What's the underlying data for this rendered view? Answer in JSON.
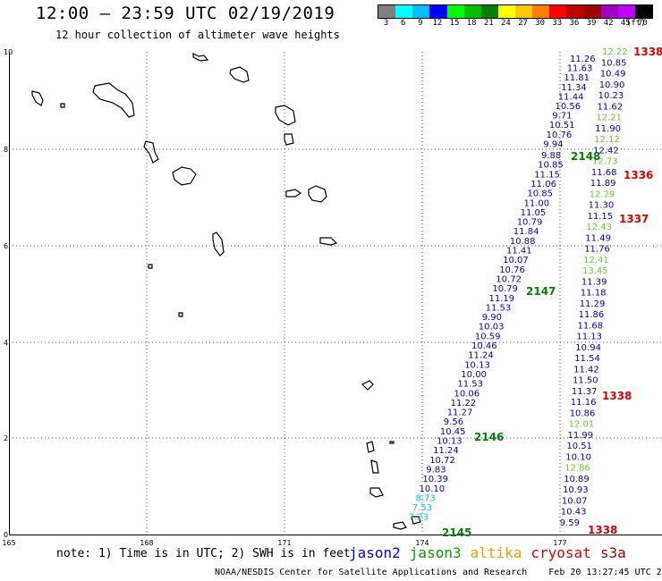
{
  "header": {
    "title": "12:00 – 23:59 UTC 02/19/2019",
    "subtitle": "12 hour collection of altimeter wave heights"
  },
  "legend": {
    "unit_label": "(ft)",
    "colors": [
      "#808080",
      "#00ffff",
      "#00bfff",
      "#0000ff",
      "#00ff00",
      "#00c000",
      "#008000",
      "#ffff00",
      "#ffc800",
      "#ff8000",
      "#ff0000",
      "#c00000",
      "#a00000",
      "#a000c0",
      "#c000ff",
      "#000000"
    ],
    "labels": [
      "3",
      "6",
      "9",
      "12",
      "15",
      "18",
      "21",
      "24",
      "27",
      "30",
      "33",
      "36",
      "39",
      "42",
      "45",
      "70"
    ]
  },
  "axes": {
    "x_ticks": [
      "165",
      "168",
      "171",
      "174",
      "177"
    ],
    "y_ticks": [
      "0",
      "2",
      "4",
      "6",
      "8",
      "10"
    ]
  },
  "track_labels": [
    {
      "text": "1338",
      "color": "#e00000"
    },
    {
      "text": "1336",
      "color": "#e00000"
    },
    {
      "text": "1337",
      "color": "#e00000"
    },
    {
      "text": "1338",
      "color": "#e00000"
    },
    {
      "text": "1338",
      "color": "#e00000"
    },
    {
      "text": "2148",
      "color": "#008000"
    },
    {
      "text": "2147",
      "color": "#008000"
    },
    {
      "text": "2146",
      "color": "#008000"
    },
    {
      "text": "2145",
      "color": "#008000"
    }
  ],
  "track_left": [
    "9.88",
    "10.85",
    "11.15",
    "11.06",
    "10.85",
    "11.00",
    "11.05",
    "10.79",
    "11.84",
    "10.88",
    "11.41",
    "10.07",
    "10.76",
    "10.72",
    "10.79",
    "11.19",
    "11.53",
    "9.90",
    "10.03",
    "10.59",
    "10.46",
    "11.24",
    "10.13",
    "10.00",
    "11.53",
    "10.06",
    "11.22",
    "11.27",
    "9.56",
    "10.45",
    "10.13",
    "11.24",
    "10.72",
    "9.83",
    "10.39",
    "10.10",
    "8.73",
    "7.53",
    "7.23"
  ],
  "track_left_colors": [
    "#0000cc",
    "#0000cc",
    "#0000cc",
    "#0000cc",
    "#0000cc",
    "#0000cc",
    "#0000cc",
    "#0000cc",
    "#0000cc",
    "#0000cc",
    "#0000cc",
    "#0000cc",
    "#0000cc",
    "#0000cc",
    "#0000cc",
    "#0000cc",
    "#0000cc",
    "#0000cc",
    "#0000cc",
    "#0000cc",
    "#0000cc",
    "#0000cc",
    "#0000cc",
    "#0000cc",
    "#0000cc",
    "#0000cc",
    "#0000cc",
    "#0000cc",
    "#0000cc",
    "#0000cc",
    "#0000cc",
    "#0000cc",
    "#0000cc",
    "#0000cc",
    "#0000cc",
    "#0000cc",
    "#00bfff",
    "#00bfff",
    "#00bfff"
  ],
  "track_upper": [
    "11.26",
    "11.63",
    "11.81",
    "11.34",
    "11.44",
    "10.56",
    "9.71",
    "10.51",
    "10.76",
    "9.94"
  ],
  "track_right": [
    "12.22",
    "10.85",
    "10.49",
    "10.90",
    "10.23",
    "11.62",
    "12.21",
    "11.90",
    "12.12",
    "12.42",
    "12.73",
    "11.68",
    "11.89",
    "12.29",
    "11.30",
    "11.15",
    "12.43",
    "11.49",
    "11.76",
    "12.41",
    "13.45",
    "11.39",
    "11.18",
    "11.29",
    "11.86",
    "11.68",
    "11.13",
    "10.94",
    "11.54",
    "11.42",
    "11.50",
    "11.37",
    "11.16",
    "10.86",
    "12.01",
    "11.99",
    "10.51",
    "10.10",
    "12.86",
    "10.89",
    "10.93",
    "10.07",
    "10.43",
    "9.59"
  ],
  "track_right_colors": [
    "#66cc33",
    "#0000cc",
    "#0000cc",
    "#0000cc",
    "#0000cc",
    "#0000cc",
    "#66cc33",
    "#0000cc",
    "#66cc33",
    "#0000cc",
    "#66cc33",
    "#0000cc",
    "#0000cc",
    "#66cc33",
    "#0000cc",
    "#0000cc",
    "#66cc33",
    "#0000cc",
    "#0000cc",
    "#66cc33",
    "#66cc33",
    "#0000cc",
    "#0000cc",
    "#0000cc",
    "#0000cc",
    "#0000cc",
    "#0000cc",
    "#0000cc",
    "#0000cc",
    "#0000cc",
    "#0000cc",
    "#0000cc",
    "#0000cc",
    "#0000cc",
    "#66cc33",
    "#0000cc",
    "#0000cc",
    "#0000cc",
    "#66cc33",
    "#0000cc",
    "#0000cc",
    "#0000cc",
    "#0000cc",
    "#0000cc"
  ],
  "footer": {
    "note": "note: 1) Time is in UTC; 2) SWH is in feet",
    "satellites": [
      {
        "name": "jason2",
        "color": "#0000ff"
      },
      {
        "name": "jason3",
        "color": "#00a000"
      },
      {
        "name": "altika",
        "color": "#ff9900"
      },
      {
        "name": "cryosat",
        "color": "#e00000"
      },
      {
        "name": "s3a",
        "color": "#a00000"
      }
    ],
    "credit": "NOAA/NESDIS Center for Satellite Applications and Research    Feb 20 13:27:45 UTC 2019"
  }
}
